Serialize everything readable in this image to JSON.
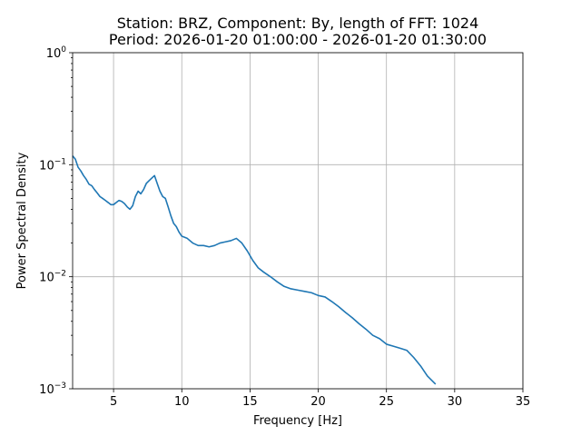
{
  "chart_data": {
    "type": "line",
    "title_lines": [
      "Station: BRZ, Component: By, length of FFT: 1024",
      "Period: 2026-01-20 01:00:00 - 2026-01-20 01:30:00"
    ],
    "xlabel": "Frequency [Hz]",
    "ylabel": "Power Spectral Density",
    "xlim": [
      2,
      35
    ],
    "ylim": [
      0.001,
      1
    ],
    "yscale": "log",
    "grid": true,
    "line_color": "#1f77b4",
    "x_ticks": [
      5,
      10,
      15,
      20,
      25,
      30,
      35
    ],
    "x_tick_labels": [
      "5",
      "10",
      "15",
      "20",
      "25",
      "30",
      "35"
    ],
    "y_ticks": [
      0.001,
      0.01,
      0.1,
      1
    ],
    "y_tick_labels": [
      {
        "base": "10",
        "exp": "−3"
      },
      {
        "base": "10",
        "exp": "−2"
      },
      {
        "base": "10",
        "exp": "−1"
      },
      {
        "base": "10",
        "exp": "0"
      }
    ],
    "series": [
      {
        "x": [
          2.0,
          2.2,
          2.4,
          2.6,
          2.8,
          3.0,
          3.2,
          3.4,
          3.6,
          3.8,
          4.0,
          4.2,
          4.4,
          4.6,
          4.8,
          5.0,
          5.2,
          5.4,
          5.6,
          5.8,
          6.0,
          6.2,
          6.4,
          6.6,
          6.8,
          7.0,
          7.2,
          7.4,
          7.6,
          7.8,
          8.0,
          8.2,
          8.4,
          8.6,
          8.8,
          9.0,
          9.2,
          9.4,
          9.6,
          9.8,
          10.0,
          10.4,
          10.8,
          11.2,
          11.6,
          12.0,
          12.4,
          12.8,
          13.2,
          13.6,
          14.0,
          14.4,
          14.8,
          15.2,
          15.6,
          16.0,
          16.5,
          17.0,
          17.5,
          18.0,
          18.5,
          19.0,
          19.5,
          20.0,
          20.5,
          21.0,
          21.5,
          22.0,
          22.5,
          23.0,
          23.5,
          24.0,
          24.5,
          25.0,
          25.5,
          26.0,
          26.5,
          27.0,
          27.5,
          28.0,
          28.6
        ],
        "y": [
          0.12,
          0.112,
          0.095,
          0.088,
          0.08,
          0.074,
          0.067,
          0.065,
          0.06,
          0.056,
          0.052,
          0.05,
          0.048,
          0.046,
          0.044,
          0.044,
          0.046,
          0.048,
          0.047,
          0.045,
          0.042,
          0.04,
          0.043,
          0.052,
          0.058,
          0.055,
          0.06,
          0.068,
          0.072,
          0.076,
          0.08,
          0.068,
          0.058,
          0.052,
          0.05,
          0.042,
          0.035,
          0.03,
          0.028,
          0.025,
          0.023,
          0.022,
          0.02,
          0.019,
          0.019,
          0.0185,
          0.019,
          0.02,
          0.0205,
          0.021,
          0.022,
          0.02,
          0.017,
          0.014,
          0.012,
          0.011,
          0.01,
          0.009,
          0.0082,
          0.0078,
          0.0076,
          0.0074,
          0.0072,
          0.0068,
          0.0066,
          0.006,
          0.0054,
          0.0048,
          0.0043,
          0.0038,
          0.0034,
          0.003,
          0.0028,
          0.0025,
          0.0024,
          0.0023,
          0.0022,
          0.0019,
          0.0016,
          0.0013,
          0.0011
        ]
      }
    ]
  }
}
